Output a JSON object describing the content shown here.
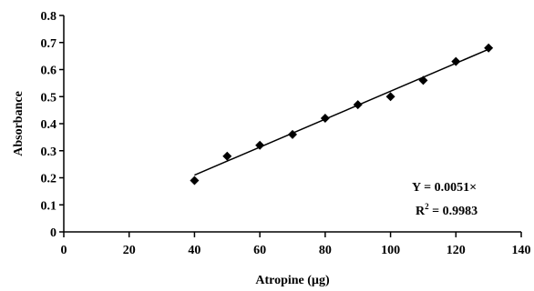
{
  "chart_data": {
    "type": "scatter",
    "xlabel": "Atropine (µg)",
    "ylabel": "Absorbance",
    "xlim": [
      0,
      140
    ],
    "ylim": [
      0,
      0.8
    ],
    "xticks": [
      0,
      20,
      40,
      60,
      80,
      100,
      120,
      140
    ],
    "yticks": [
      0,
      0.1,
      0.2,
      0.3,
      0.4,
      0.5,
      0.6,
      0.7,
      0.8
    ],
    "xtick_labels": [
      "0",
      "20",
      "40",
      "60",
      "80",
      "100",
      "120",
      "140"
    ],
    "ytick_labels": [
      "0",
      "0.1",
      "0.2",
      "0.3",
      "0.4",
      "0.5",
      "0.6",
      "0.7",
      "0.8"
    ],
    "grid": false,
    "series": [
      {
        "x": [
          40,
          50,
          60,
          70,
          80,
          90,
          100,
          110,
          120,
          130
        ],
        "y": [
          0.19,
          0.28,
          0.32,
          0.36,
          0.42,
          0.47,
          0.5,
          0.56,
          0.63,
          0.68
        ],
        "marker": "diamond",
        "color": "#000000"
      }
    ],
    "trendline": {
      "x": [
        40,
        130
      ],
      "y": [
        0.21,
        0.675
      ],
      "color": "#000000"
    },
    "annotation": {
      "equation": "Y = 0.0051×",
      "r2_prefix": "R",
      "r2_exp": "2",
      "r2_suffix": " = 0.9983"
    }
  }
}
